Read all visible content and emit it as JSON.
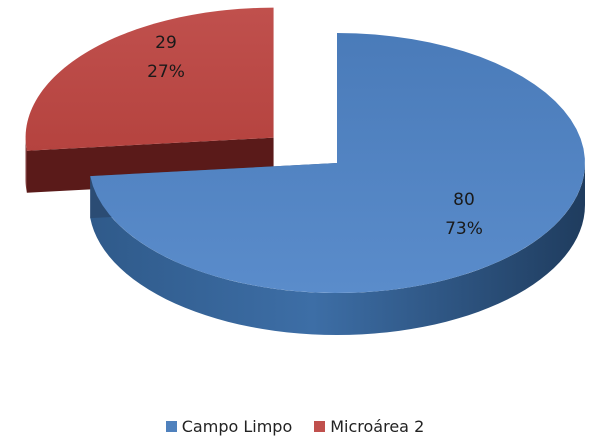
{
  "chart_data": {
    "type": "pie",
    "style": "3d-exploded",
    "slices": [
      {
        "name": "Campo Limpo",
        "value": 80,
        "percent": "73%",
        "color": "#4f81bd",
        "side_color": "#2e4f78"
      },
      {
        "name": "Microárea 2",
        "value": 29,
        "percent": "27%",
        "color": "#c0504d",
        "side_color": "#6b1f1e"
      }
    ],
    "legend_position": "bottom"
  },
  "legend": {
    "items": [
      {
        "label": "Campo Limpo",
        "color": "#4f81bd"
      },
      {
        "label": "Microárea 2",
        "color": "#c0504d"
      }
    ]
  }
}
